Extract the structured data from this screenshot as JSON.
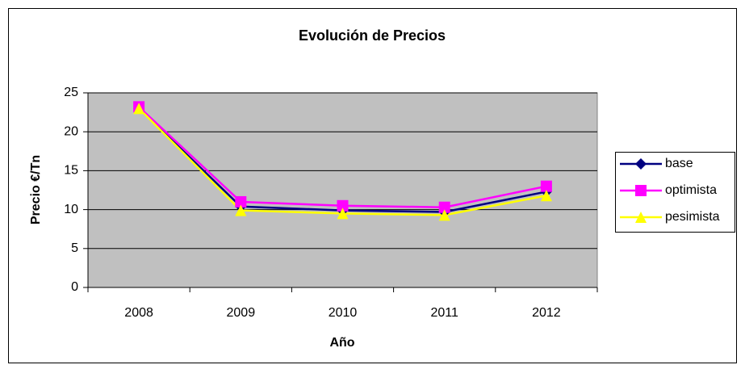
{
  "chart_data": {
    "type": "line",
    "title": "Evolución de Precios",
    "x_label": "Año",
    "y_label": "Precio €/Tn",
    "categories": [
      "2008",
      "2009",
      "2010",
      "2011",
      "2012"
    ],
    "series": [
      {
        "name": "base",
        "color": "#000080",
        "marker": "diamond",
        "values": [
          23,
          10.4,
          9.9,
          9.7,
          12.3
        ]
      },
      {
        "name": "optimista",
        "color": "#ff00ff",
        "marker": "square",
        "values": [
          23.2,
          11,
          10.5,
          10.3,
          13
        ]
      },
      {
        "name": "pesimista",
        "color": "#ffff00",
        "marker": "triangle",
        "values": [
          23,
          9.9,
          9.5,
          9.3,
          11.8
        ]
      }
    ],
    "ylim": [
      0,
      25
    ],
    "yticks": [
      0,
      5,
      10,
      15,
      20,
      25
    ],
    "grid": true,
    "legend": "right"
  }
}
